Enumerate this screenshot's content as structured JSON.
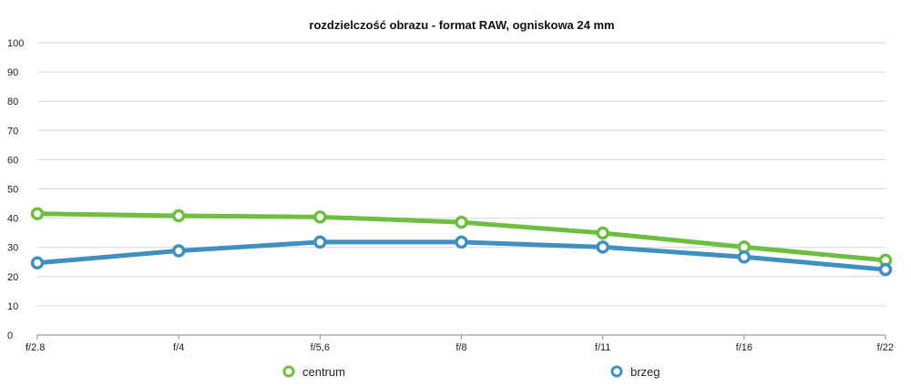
{
  "chart_data": {
    "type": "line",
    "title": "rozdzielczość obrazu - format RAW, ogniskowa 24 mm",
    "xlabel": "",
    "ylabel": "",
    "categories": [
      "f/2.8",
      "f/4",
      "f/5,6",
      "f/8",
      "f/11",
      "f/16",
      "f/22"
    ],
    "ylim": [
      0,
      100
    ],
    "yticks": [
      0,
      10,
      20,
      30,
      40,
      50,
      60,
      70,
      80,
      90,
      100
    ],
    "grid": true,
    "legend_position": "bottom",
    "series": [
      {
        "name": "centrum",
        "color": "#6cbf3f",
        "values": [
          41.5,
          40.8,
          40.4,
          38.6,
          34.9,
          30.1,
          25.6
        ]
      },
      {
        "name": "brzeg",
        "color": "#3f8fc0",
        "values": [
          24.7,
          28.8,
          31.8,
          31.8,
          30.1,
          26.7,
          22.4
        ]
      }
    ]
  }
}
